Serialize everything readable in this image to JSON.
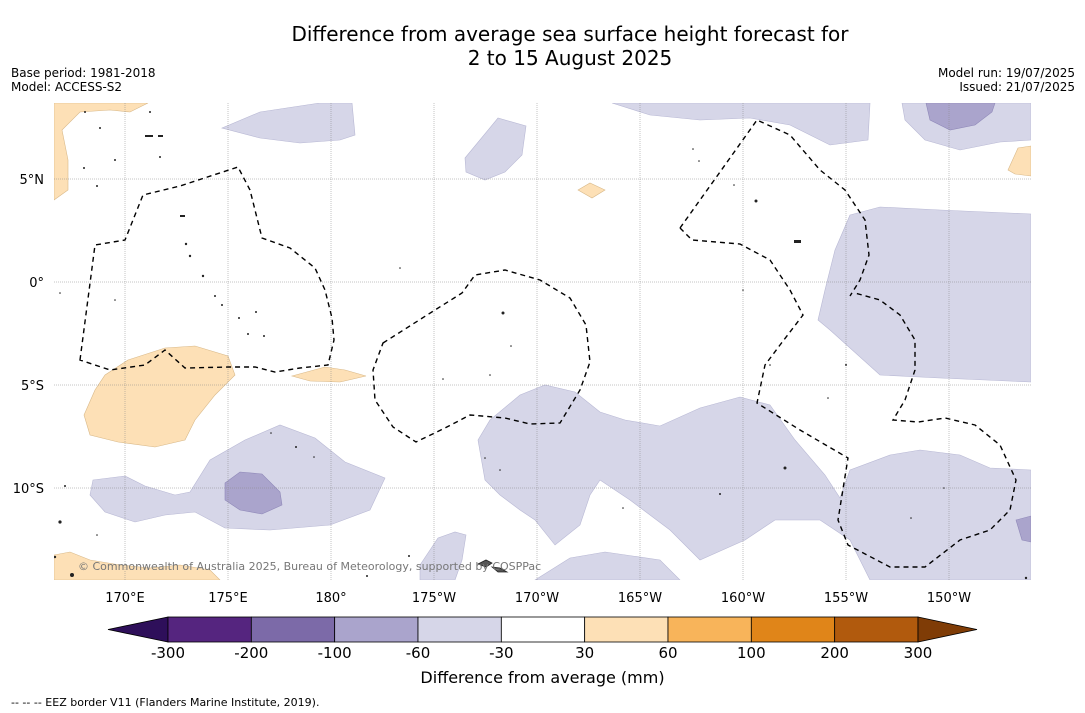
{
  "title": {
    "line1": "Difference from average sea surface height forecast for",
    "line2": "2 to 15 August 2025"
  },
  "meta": {
    "base_period": "Base period: 1981-2018",
    "model": "Model: ACCESS-S2",
    "model_run": "Model run: 19/07/2025",
    "issued": "Issued: 21/07/2025"
  },
  "map": {
    "lon_labels": [
      "170°E",
      "175°E",
      "180°",
      "175°W",
      "170°W",
      "165°W",
      "160°W",
      "155°W",
      "150°W"
    ],
    "lat_labels": [
      "5°N",
      "0°",
      "5°S",
      "10°S"
    ],
    "copyright": "© Commonwealth of Australia 2025, Bureau of Meteorology, supported by COSPPac"
  },
  "colorbar": {
    "ticks": [
      "-300",
      "-200",
      "-100",
      "-60",
      "-30",
      "30",
      "60",
      "100",
      "200",
      "300"
    ],
    "colors": [
      "#2e0f5a",
      "#55257f",
      "#7c6aa8",
      "#aaa4cc",
      "#d6d6e8",
      "#ffffff",
      "#fde0b6",
      "#f8b45a",
      "#e08519",
      "#b15a0d",
      "#7f3c06"
    ],
    "label": "Difference from average (mm)"
  },
  "footer": "-- -- -- EEZ border V11 (Flanders Marine Institute, 2019)."
}
